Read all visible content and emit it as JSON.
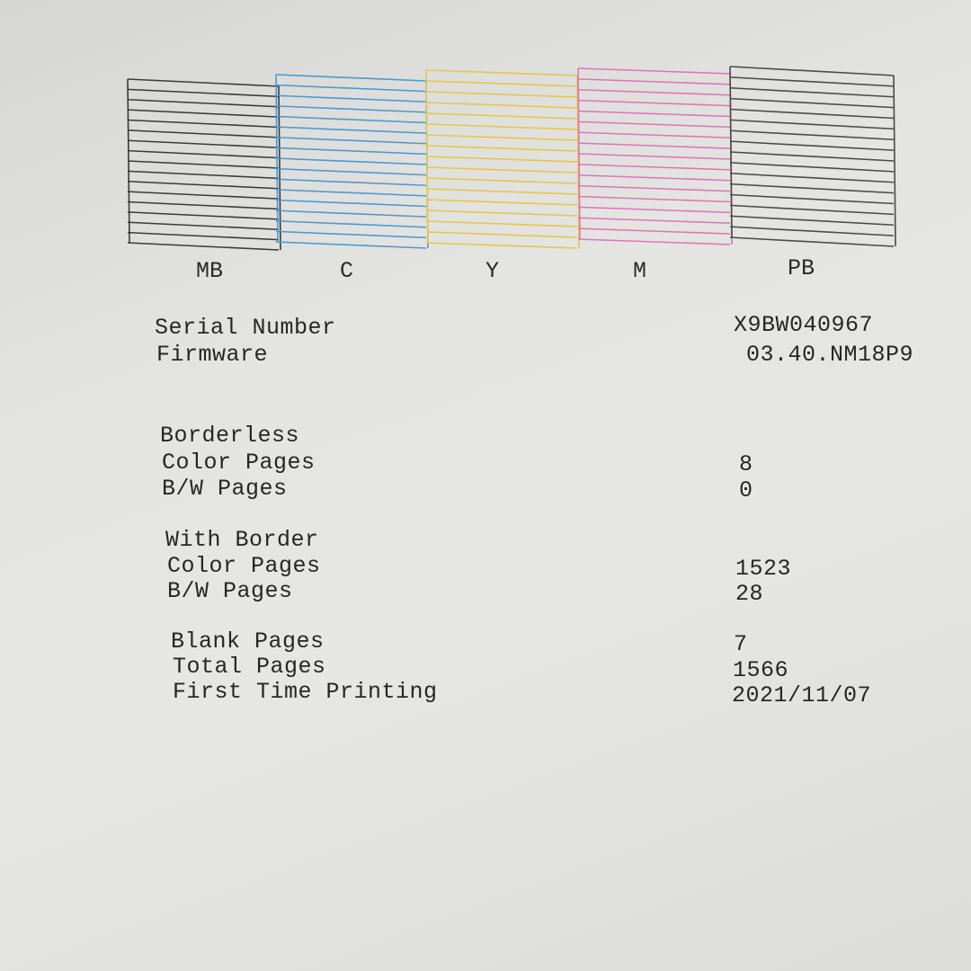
{
  "nozzle_check": {
    "blocks": [
      {
        "label": "MB",
        "color": "#3a3a3a"
      },
      {
        "label": "C",
        "color": "#4a9ad0"
      },
      {
        "label": "Y",
        "color": "#e3c84e"
      },
      {
        "label": "M",
        "color": "#df74b4"
      },
      {
        "label": "PB",
        "color": "#4a4a4a"
      }
    ]
  },
  "info": {
    "serial_label": "Serial Number",
    "serial_value": "X9BW040967",
    "firmware_label": "Firmware",
    "firmware_value": "03.40.NM18P9"
  },
  "borderless": {
    "heading": "Borderless",
    "color_label": "Color Pages",
    "color_value": "8",
    "bw_label": "B/W Pages",
    "bw_value": "0"
  },
  "with_border": {
    "heading": "With Border",
    "color_label": "Color Pages",
    "color_value": "1523",
    "bw_label": "B/W Pages",
    "bw_value": "28"
  },
  "totals": {
    "blank_label": "Blank Pages",
    "blank_value": "7",
    "total_label": "Total Pages",
    "total_value": "1566",
    "first_label": "First Time Printing",
    "first_value": "2021/11/07"
  }
}
